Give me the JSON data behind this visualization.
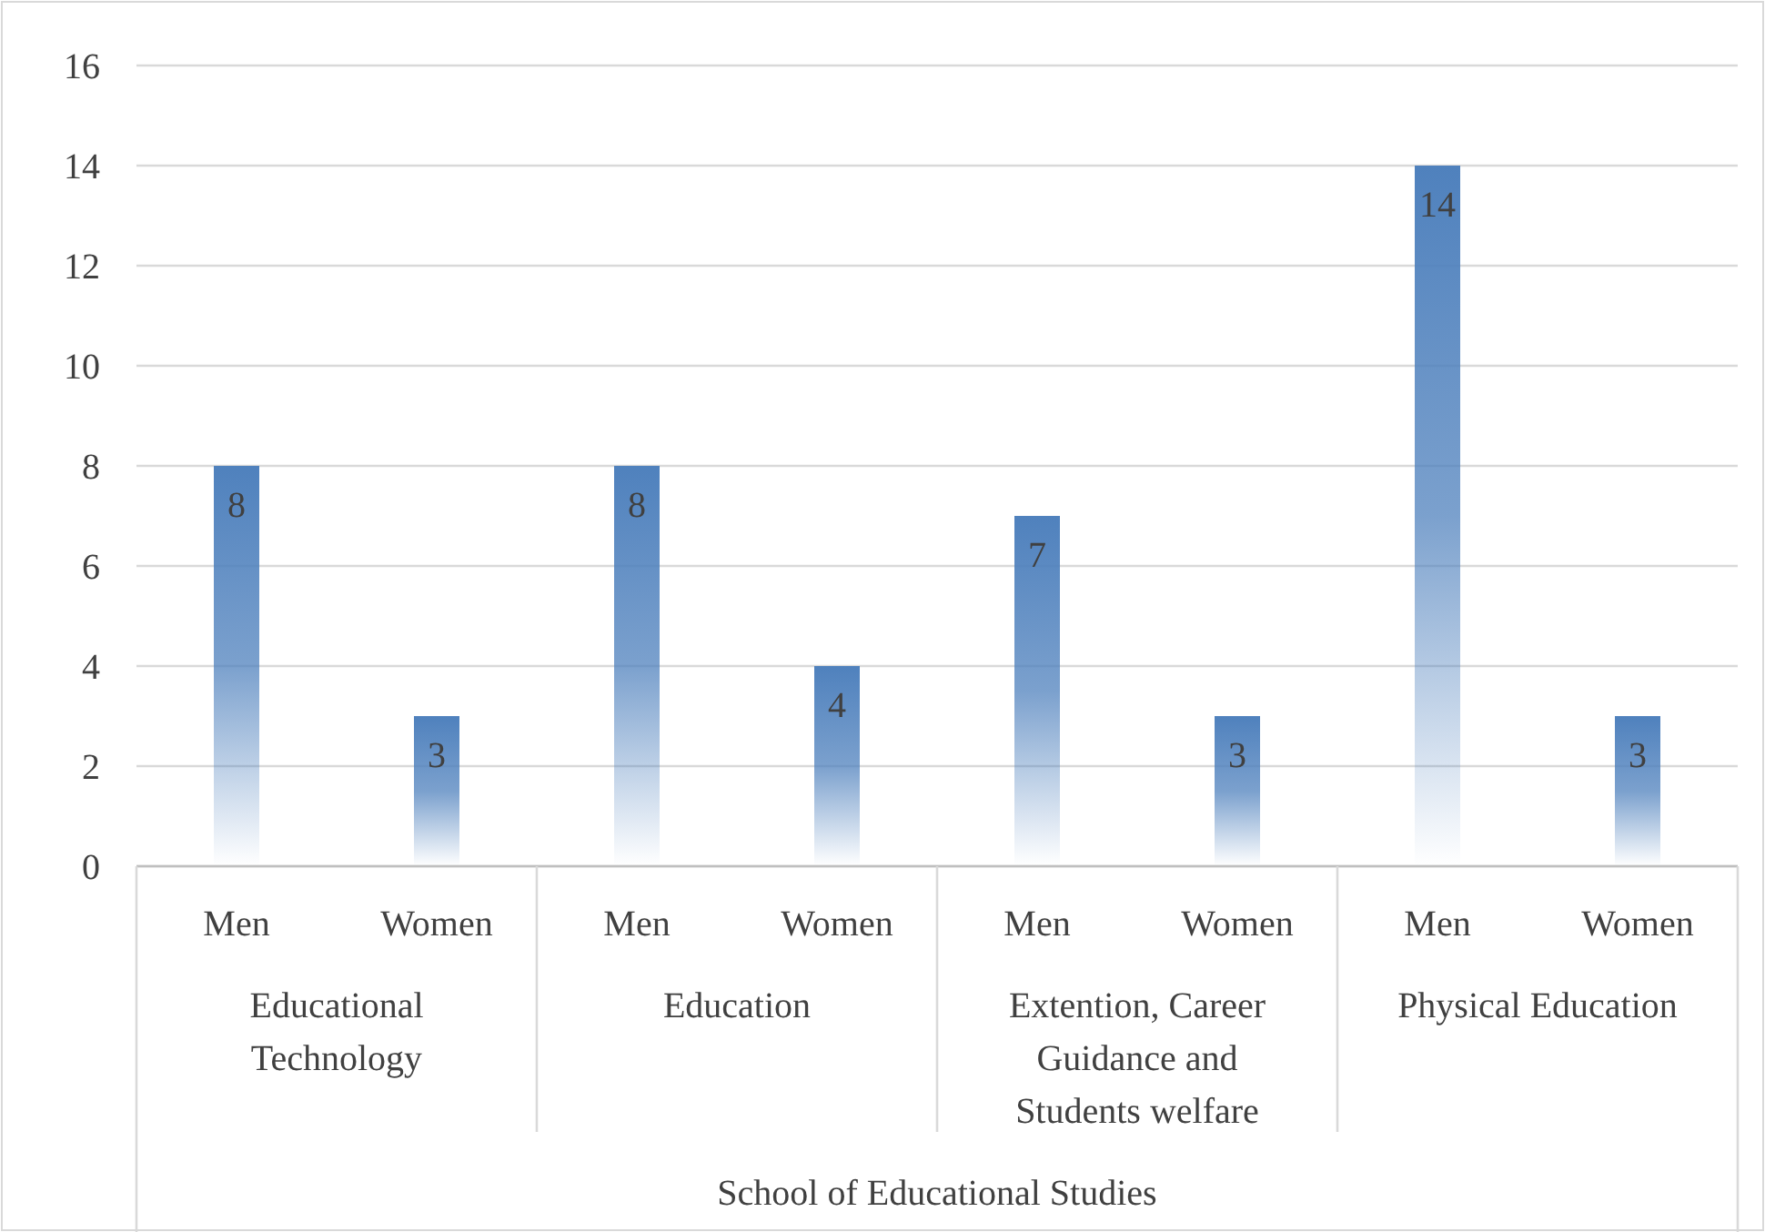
{
  "chart_data": {
    "type": "bar",
    "categories": [
      "Men",
      "Women",
      "Men",
      "Women",
      "Men",
      "Women",
      "Men",
      "Women"
    ],
    "values": [
      8,
      3,
      8,
      4,
      7,
      3,
      14,
      3
    ],
    "color": "#4f81bd",
    "ylim": [
      0,
      16
    ],
    "yticks": [
      0,
      2,
      4,
      6,
      8,
      10,
      12,
      14,
      16
    ],
    "grid": "y",
    "data_labels": true,
    "annotations": [
      "Educational Technology",
      "Education",
      "Extention, Career Guidance and Students welfare",
      "Physical Education",
      "School of Educational Studies"
    ]
  }
}
